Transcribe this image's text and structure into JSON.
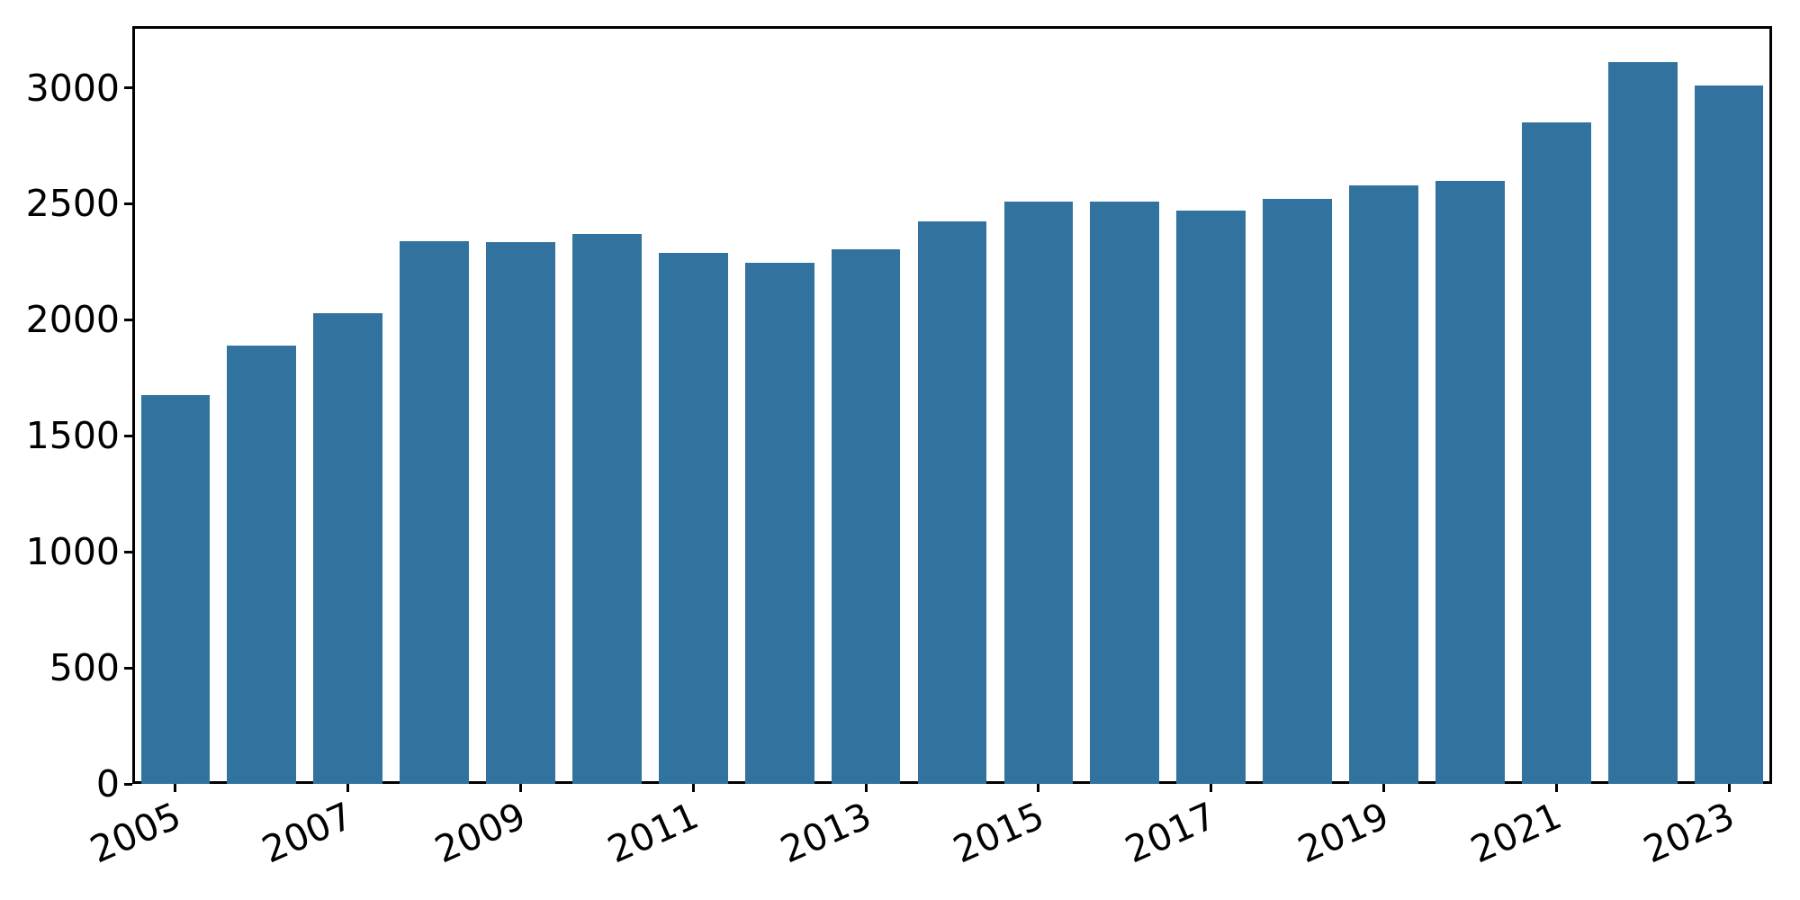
{
  "chart_data": {
    "type": "bar",
    "title": "",
    "xlabel": "",
    "ylabel": "",
    "categories": [
      "2005",
      "2006",
      "2007",
      "2008",
      "2009",
      "2010",
      "2011",
      "2012",
      "2013",
      "2014",
      "2015",
      "2016",
      "2017",
      "2018",
      "2019",
      "2020",
      "2021",
      "2022",
      "2023"
    ],
    "values": [
      1675,
      1890,
      2030,
      2340,
      2335,
      2370,
      2290,
      2245,
      2305,
      2425,
      2510,
      2510,
      2470,
      2520,
      2580,
      2600,
      2850,
      3110,
      3010
    ],
    "x_tick_labels": [
      "2005",
      "2007",
      "2009",
      "2011",
      "2013",
      "2015",
      "2017",
      "2019",
      "2021",
      "2023"
    ],
    "y_ticks": [
      0,
      500,
      1000,
      1500,
      2000,
      2500,
      3000
    ],
    "ylim": [
      0,
      3266
    ],
    "xlim_categories": [
      -0.5,
      18.5
    ],
    "bar_width_fraction": 0.8,
    "x_tick_rotation_deg": 24,
    "grid": false,
    "legend": null,
    "bar_color": "#31739e",
    "axis_color": "#000000",
    "background_color": "#ffffff"
  }
}
